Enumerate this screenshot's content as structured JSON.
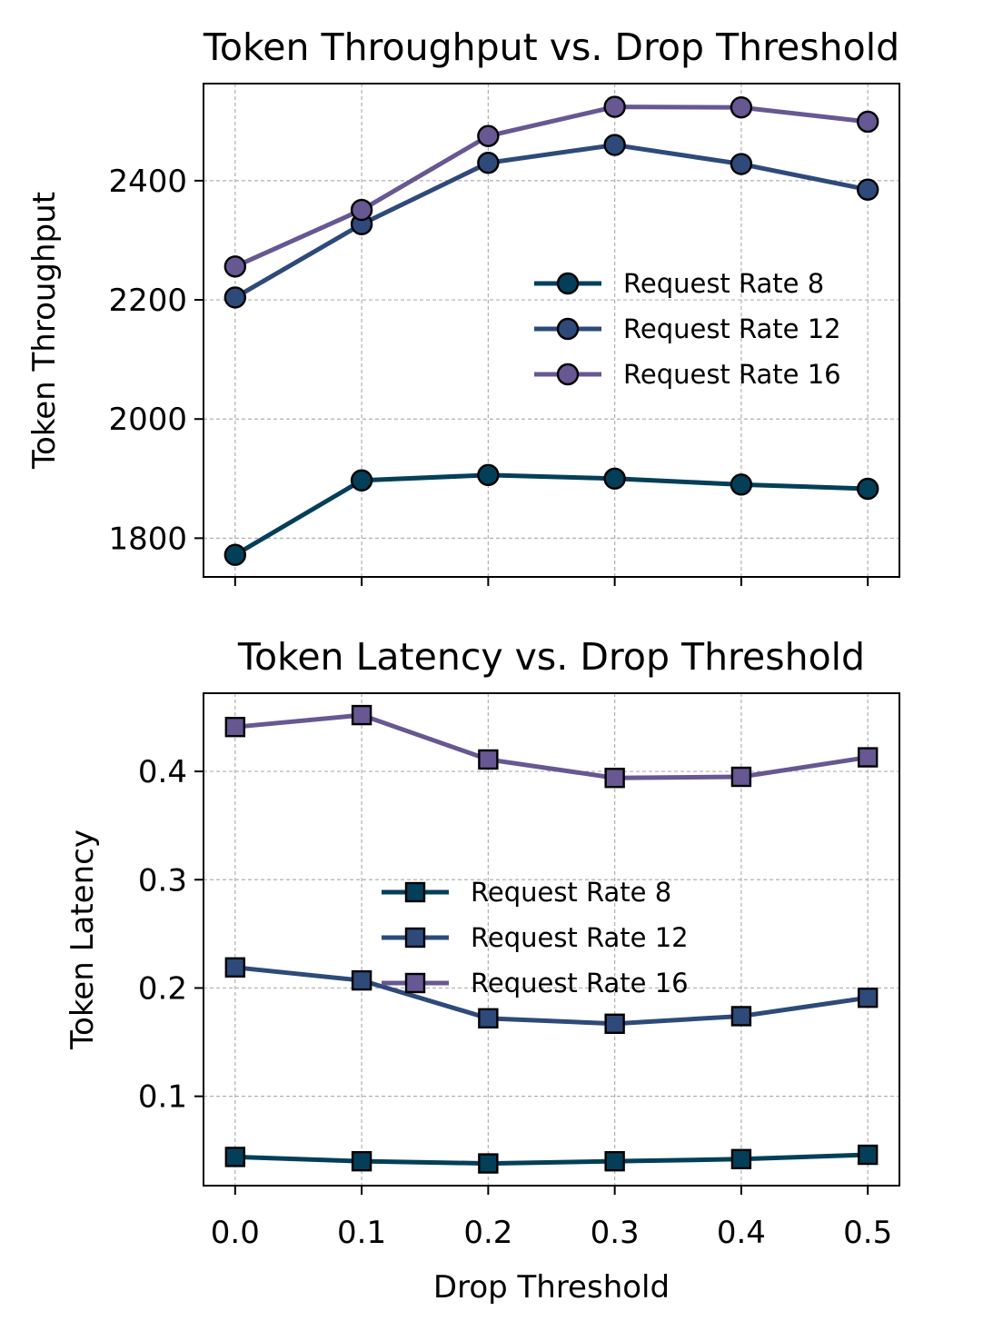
{
  "chart_data": [
    {
      "type": "line",
      "title": "Token Throughput vs. Drop Threshold",
      "xlabel": "",
      "ylabel": "Token Throughput",
      "x": [
        0.0,
        0.1,
        0.2,
        0.3,
        0.4,
        0.5
      ],
      "x_tick_labels": [
        "0.0",
        "0.1",
        "0.2",
        "0.3",
        "0.4",
        "0.5"
      ],
      "show_x_tick_labels": false,
      "xlim": [
        -0.025,
        0.525
      ],
      "ylim": [
        1735,
        2563
      ],
      "y_ticks": [
        1800,
        2000,
        2200,
        2400
      ],
      "y_tick_labels": [
        "1800",
        "2000",
        "2200",
        "2400"
      ],
      "grid": true,
      "marker": "circle",
      "legend_position": "center-right",
      "series": [
        {
          "name": "Request Rate 8",
          "color": "#033f58",
          "values": [
            1772,
            1897,
            1906,
            1900,
            1890,
            1883
          ]
        },
        {
          "name": "Request Rate 12",
          "color": "#2e4a7a",
          "values": [
            2204,
            2327,
            2430,
            2460,
            2428,
            2385
          ]
        },
        {
          "name": "Request Rate 16",
          "color": "#675792",
          "values": [
            2256,
            2351,
            2475,
            2524,
            2523,
            2499
          ]
        }
      ]
    },
    {
      "type": "line",
      "title": "Token Latency vs. Drop Threshold",
      "xlabel": "Drop Threshold",
      "ylabel": "Token Latency",
      "x": [
        0.0,
        0.1,
        0.2,
        0.3,
        0.4,
        0.5
      ],
      "x_tick_labels": [
        "0.0",
        "0.1",
        "0.2",
        "0.3",
        "0.4",
        "0.5"
      ],
      "show_x_tick_labels": true,
      "xlim": [
        -0.025,
        0.525
      ],
      "ylim": [
        0.0175,
        0.4722
      ],
      "y_ticks": [
        0.1,
        0.2,
        0.3,
        0.4
      ],
      "y_tick_labels": [
        "0.1",
        "0.2",
        "0.3",
        "0.4"
      ],
      "grid": true,
      "marker": "square",
      "legend_position": "center",
      "series": [
        {
          "name": "Request Rate 8",
          "color": "#033f58",
          "values": [
            0.044,
            0.04,
            0.038,
            0.04,
            0.042,
            0.046
          ]
        },
        {
          "name": "Request Rate 12",
          "color": "#2e4a7a",
          "values": [
            0.219,
            0.207,
            0.172,
            0.167,
            0.174,
            0.191
          ]
        },
        {
          "name": "Request Rate 16",
          "color": "#675792",
          "values": [
            0.441,
            0.452,
            0.411,
            0.394,
            0.395,
            0.413
          ]
        }
      ]
    }
  ]
}
